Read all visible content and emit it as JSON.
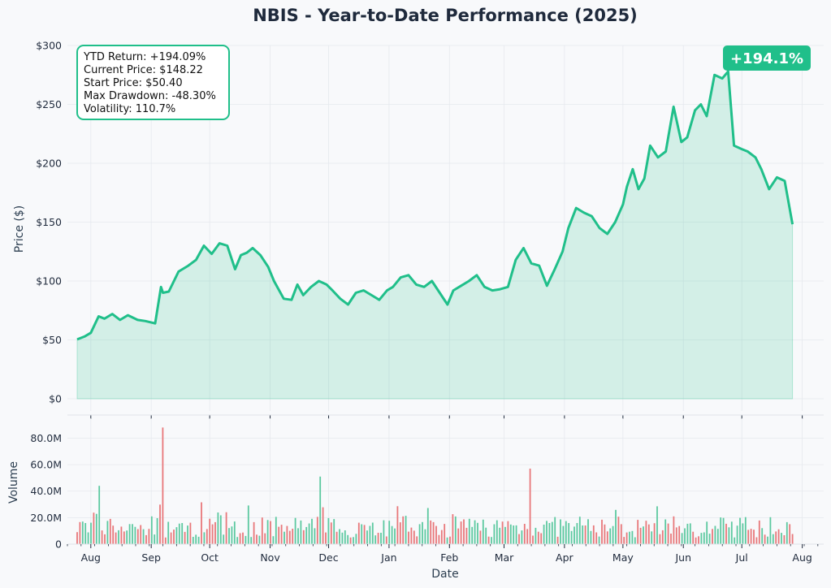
{
  "chart_data": [
    {
      "type": "line",
      "title": "NBIS - Year-to-Date Performance (2025)",
      "ylabel": "Price ($)",
      "ylim": [
        -10,
        300
      ],
      "yticks": [
        0,
        50,
        100,
        150,
        200,
        250,
        300
      ],
      "ytick_labels": [
        "$0",
        "$50",
        "$100",
        "$150",
        "$200",
        "$250",
        "$300"
      ],
      "grid": true,
      "series": [
        {
          "color": "#20bf8a",
          "fill": true,
          "x": [
            "2024-07-25",
            "2024-07-29",
            "2024-08-01",
            "2024-08-05",
            "2024-08-08",
            "2024-08-12",
            "2024-08-16",
            "2024-08-20",
            "2024-08-25",
            "2024-08-29",
            "2024-09-03",
            "2024-09-06",
            "2024-09-07",
            "2024-09-10",
            "2024-09-15",
            "2024-09-20",
            "2024-09-24",
            "2024-09-28",
            "2024-10-02",
            "2024-10-06",
            "2024-10-10",
            "2024-10-14",
            "2024-10-17",
            "2024-10-20",
            "2024-10-23",
            "2024-10-27",
            "2024-10-31",
            "2024-11-03",
            "2024-11-08",
            "2024-11-12",
            "2024-11-15",
            "2024-11-18",
            "2024-11-22",
            "2024-11-26",
            "2024-11-30",
            "2024-12-03",
            "2024-12-07",
            "2024-12-11",
            "2024-12-15",
            "2024-12-19",
            "2024-12-23",
            "2024-12-27",
            "2024-12-31",
            "2025-01-03",
            "2025-01-07",
            "2025-01-11",
            "2025-01-15",
            "2025-01-19",
            "2025-01-23",
            "2025-01-27",
            "2025-01-31",
            "2025-02-03",
            "2025-02-07",
            "2025-02-11",
            "2025-02-15",
            "2025-02-19",
            "2025-02-23",
            "2025-02-27",
            "2025-03-03",
            "2025-03-07",
            "2025-03-11",
            "2025-03-15",
            "2025-03-19",
            "2025-03-23",
            "2025-03-27",
            "2025-03-31",
            "2025-04-03",
            "2025-04-07",
            "2025-04-11",
            "2025-04-15",
            "2025-04-19",
            "2025-04-23",
            "2025-04-27",
            "2025-05-01",
            "2025-05-03",
            "2025-05-06",
            "2025-05-09",
            "2025-05-12",
            "2025-05-15",
            "2025-05-19",
            "2025-05-23",
            "2025-05-27",
            "2025-05-31",
            "2025-06-03",
            "2025-06-07",
            "2025-06-10",
            "2025-06-13",
            "2025-06-17",
            "2025-06-21",
            "2025-06-24",
            "2025-06-27",
            "2025-07-01",
            "2025-07-04",
            "2025-07-08",
            "2025-07-11",
            "2025-07-15",
            "2025-07-19",
            "2025-07-23",
            "2025-07-27"
          ],
          "values": [
            50.4,
            53,
            56,
            70,
            68,
            72,
            67,
            71,
            67,
            66,
            64,
            95,
            90,
            91,
            108,
            113,
            118,
            130,
            123,
            132,
            130,
            110,
            122,
            124,
            128,
            122,
            112,
            100,
            85,
            84,
            97,
            88,
            95,
            100,
            97,
            92,
            85,
            80,
            90,
            92,
            88,
            84,
            92,
            95,
            103,
            105,
            97,
            95,
            100,
            90,
            80,
            92,
            96,
            100,
            105,
            95,
            92,
            93,
            95,
            118,
            128,
            115,
            113,
            96,
            110,
            125,
            145,
            162,
            158,
            155,
            145,
            140,
            150,
            165,
            180,
            195,
            178,
            187,
            215,
            205,
            210,
            248,
            218,
            222,
            245,
            250,
            240,
            275,
            272,
            278,
            215,
            212,
            210,
            205,
            195,
            178,
            188,
            185,
            148.22
          ]
        }
      ],
      "annotations": [
        "YTD Return: +194.09%",
        "Current Price: $148.22",
        "Start Price: $50.40",
        "Max Drawdown: -48.30%",
        "Volatility: 110.7%"
      ],
      "badge": "+194.1%",
      "badge_color": "#20bf8a"
    },
    {
      "type": "bar",
      "xlabel": "Date",
      "ylabel": "Volume",
      "ylim": [
        0,
        95000000
      ],
      "yticks": [
        0,
        20000000,
        40000000,
        60000000,
        80000000
      ],
      "ytick_labels": [
        "0",
        "20.0M",
        "40.0M",
        "60.0M",
        "80.0M"
      ],
      "xtick_labels": [
        "Aug",
        "Sep",
        "Oct",
        "Nov",
        "Dec",
        "Jan",
        "Feb",
        "Mar",
        "Apr",
        "May",
        "Jun",
        "Jul",
        "Aug"
      ],
      "up_color": "#5cc9a0",
      "down_color": "#e8777a",
      "notable_values": [
        {
          "date": "2024-09-07",
          "value": 88000000,
          "direction": "down"
        },
        {
          "date": "2024-08-05",
          "value": 44000000,
          "direction": "up"
        },
        {
          "date": "2024-11-26",
          "value": 51000000,
          "direction": "up"
        },
        {
          "date": "2025-03-15",
          "value": 57000000,
          "direction": "down"
        }
      ]
    }
  ]
}
